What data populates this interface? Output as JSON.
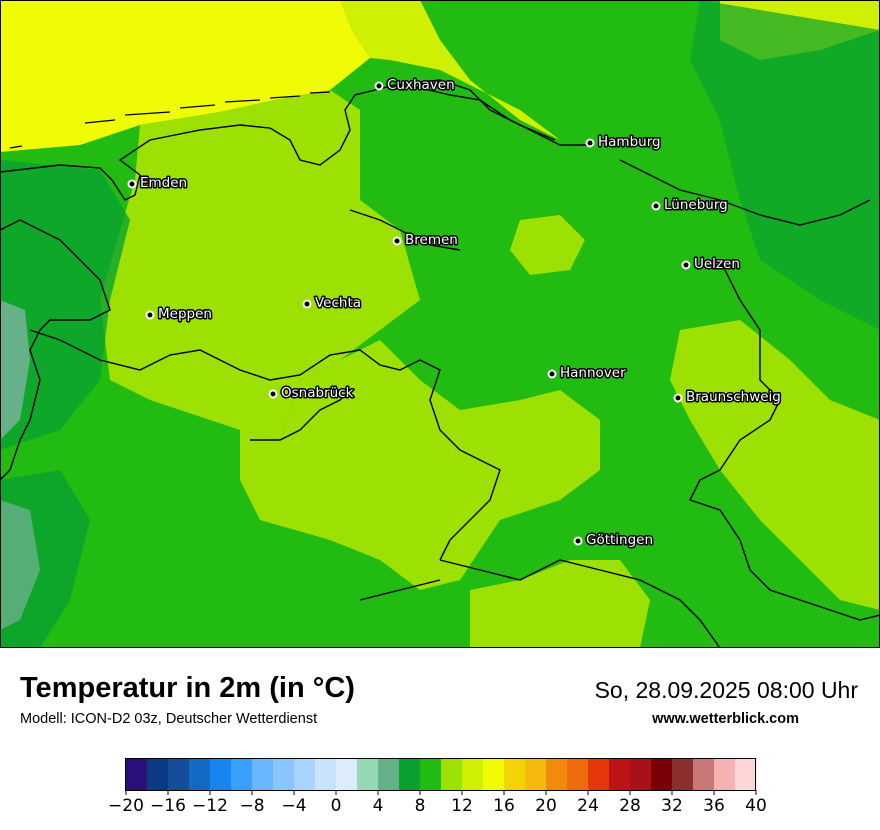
{
  "title": "Temperatur in 2m (in °C)",
  "subtitle": "Modell: ICON-D2 03z, Deutscher Wetterdienst",
  "datetime": "So, 28.09.2025 08:00 Uhr",
  "source": "www.wetterblick.com",
  "cities": [
    {
      "name": "Cuxhaven"
    },
    {
      "name": "Hamburg"
    },
    {
      "name": "Emden"
    },
    {
      "name": "Lüneburg"
    },
    {
      "name": "Bremen"
    },
    {
      "name": "Uelzen"
    },
    {
      "name": "Vechta"
    },
    {
      "name": "Meppen"
    },
    {
      "name": "Hannover"
    },
    {
      "name": "Osnabrück"
    },
    {
      "name": "Braunschweig"
    },
    {
      "name": "Göttingen"
    }
  ],
  "legend": {
    "colors": [
      "#2b0f7a",
      "#0b3a84",
      "#144d9a",
      "#1369c4",
      "#1685ee",
      "#389ffb",
      "#6ab6fd",
      "#8bc5fc",
      "#a8d4fd",
      "#c9e3fd",
      "#dcecfd",
      "#96d8b4",
      "#66b08a",
      "#0aa22f",
      "#21bb12",
      "#9de003",
      "#cfef04",
      "#f0fc03",
      "#f0d406",
      "#f3b90c",
      "#f28a0c",
      "#ef6b0b",
      "#e7380b",
      "#bc1416",
      "#a9101a",
      "#7a0008",
      "#8b2f2f",
      "#c77777",
      "#f4b2b2",
      "#fbd7d7"
    ],
    "ticks": [
      "−20",
      "−16",
      "−12",
      "−8",
      "−4",
      "0",
      "4",
      "8",
      "12",
      "16",
      "20",
      "24",
      "28",
      "32",
      "36",
      "40"
    ]
  }
}
